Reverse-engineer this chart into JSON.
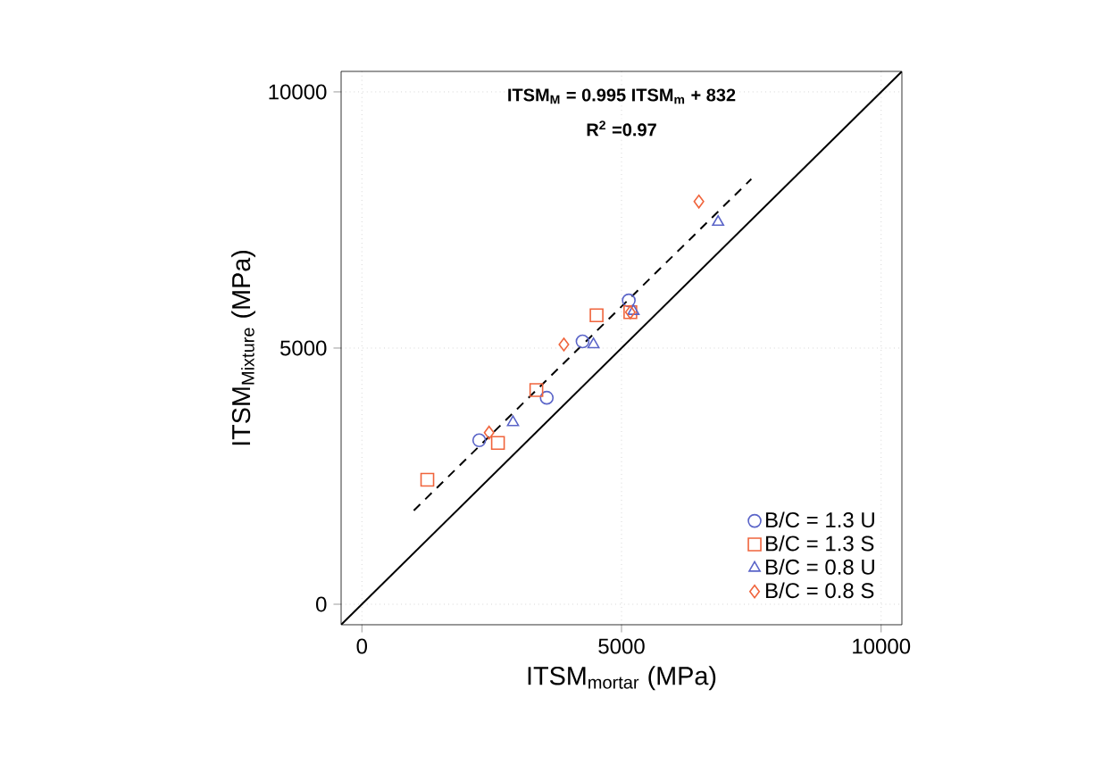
{
  "chart_data": {
    "type": "scatter",
    "xlabel": "ITSM$_{mortar}$ (MPa)",
    "ylabel": "ITSM$_{Mixture}$ (MPa)",
    "annotations": [
      "ITSM$_{M}$ = 0.995 ITSM$_{m}$ + 832",
      "R$^{2}$ =0.97"
    ],
    "xlim": [
      -400,
      10400
    ],
    "ylim": [
      -400,
      10400
    ],
    "xticks": [
      0,
      5000,
      10000
    ],
    "yticks": [
      0,
      5000,
      10000
    ],
    "grid": true,
    "legend": "bottom right",
    "series": [
      {
        "name": "B/C = 1.3 U",
        "color": "#5a64c8",
        "marker": "circle",
        "x": [
          2260,
          3560,
          4250,
          5140
        ],
        "values": [
          3200,
          4030,
          5130,
          5930
        ]
      },
      {
        "name": "B/C = 1.3 S",
        "color": "#f0643c",
        "marker": "square",
        "x": [
          1260,
          2620,
          3360,
          4520,
          5170
        ],
        "values": [
          2430,
          3150,
          4180,
          5640,
          5700
        ]
      },
      {
        "name": "B/C = 0.8 U",
        "color": "#5a64c8",
        "marker": "triangle",
        "x": [
          2910,
          4460,
          5230,
          6860
        ],
        "values": [
          3550,
          5070,
          5720,
          7460
        ]
      },
      {
        "name": "B/C = 0.8 S",
        "color": "#f0643c",
        "marker": "diamond",
        "x": [
          2450,
          3890,
          5170,
          6490
        ],
        "values": [
          3350,
          5070,
          5700,
          7860
        ]
      },
      {
        "type": "line",
        "color": "#000000",
        "line_style": "dashed",
        "x": [
          1000,
          7500
        ],
        "values": [
          1830,
          8300
        ]
      },
      {
        "type": "line",
        "color": "#000000",
        "line_style": "solid",
        "x": [
          -400,
          10400
        ],
        "values": [
          -400,
          10400
        ]
      }
    ]
  }
}
